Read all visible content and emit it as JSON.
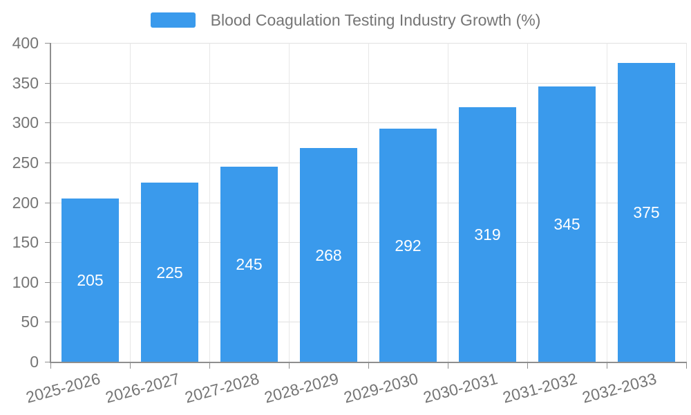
{
  "chart_data": {
    "type": "bar",
    "title": "Blood Coagulation Testing Industry Growth (%)",
    "legend": [
      "Blood Coagulation Testing Industry Growth (%)"
    ],
    "legend_position": "top",
    "categories": [
      "2025-2026",
      "2026-2027",
      "2027-2028",
      "2028-2029",
      "2029-2030",
      "2030-2031",
      "2031-2032",
      "2032-2033"
    ],
    "values": [
      205,
      225,
      245,
      268,
      292,
      319,
      345,
      375
    ],
    "xlabel": "",
    "ylabel": "",
    "ylim": [
      0,
      400
    ],
    "y_ticks": [
      0,
      50,
      100,
      150,
      200,
      250,
      300,
      350,
      400
    ],
    "grid": true,
    "x_label_rotation_deg": -15,
    "colors": {
      "bar": "#3A9AEC",
      "bar_value_text": "#FFFFFF",
      "axis_text": "#757575",
      "axis_line": "#8E8E8E",
      "gridline_h": "#E0E0E0",
      "gridline_v": "#E7E7E7",
      "background": "#FFFFFF"
    }
  }
}
